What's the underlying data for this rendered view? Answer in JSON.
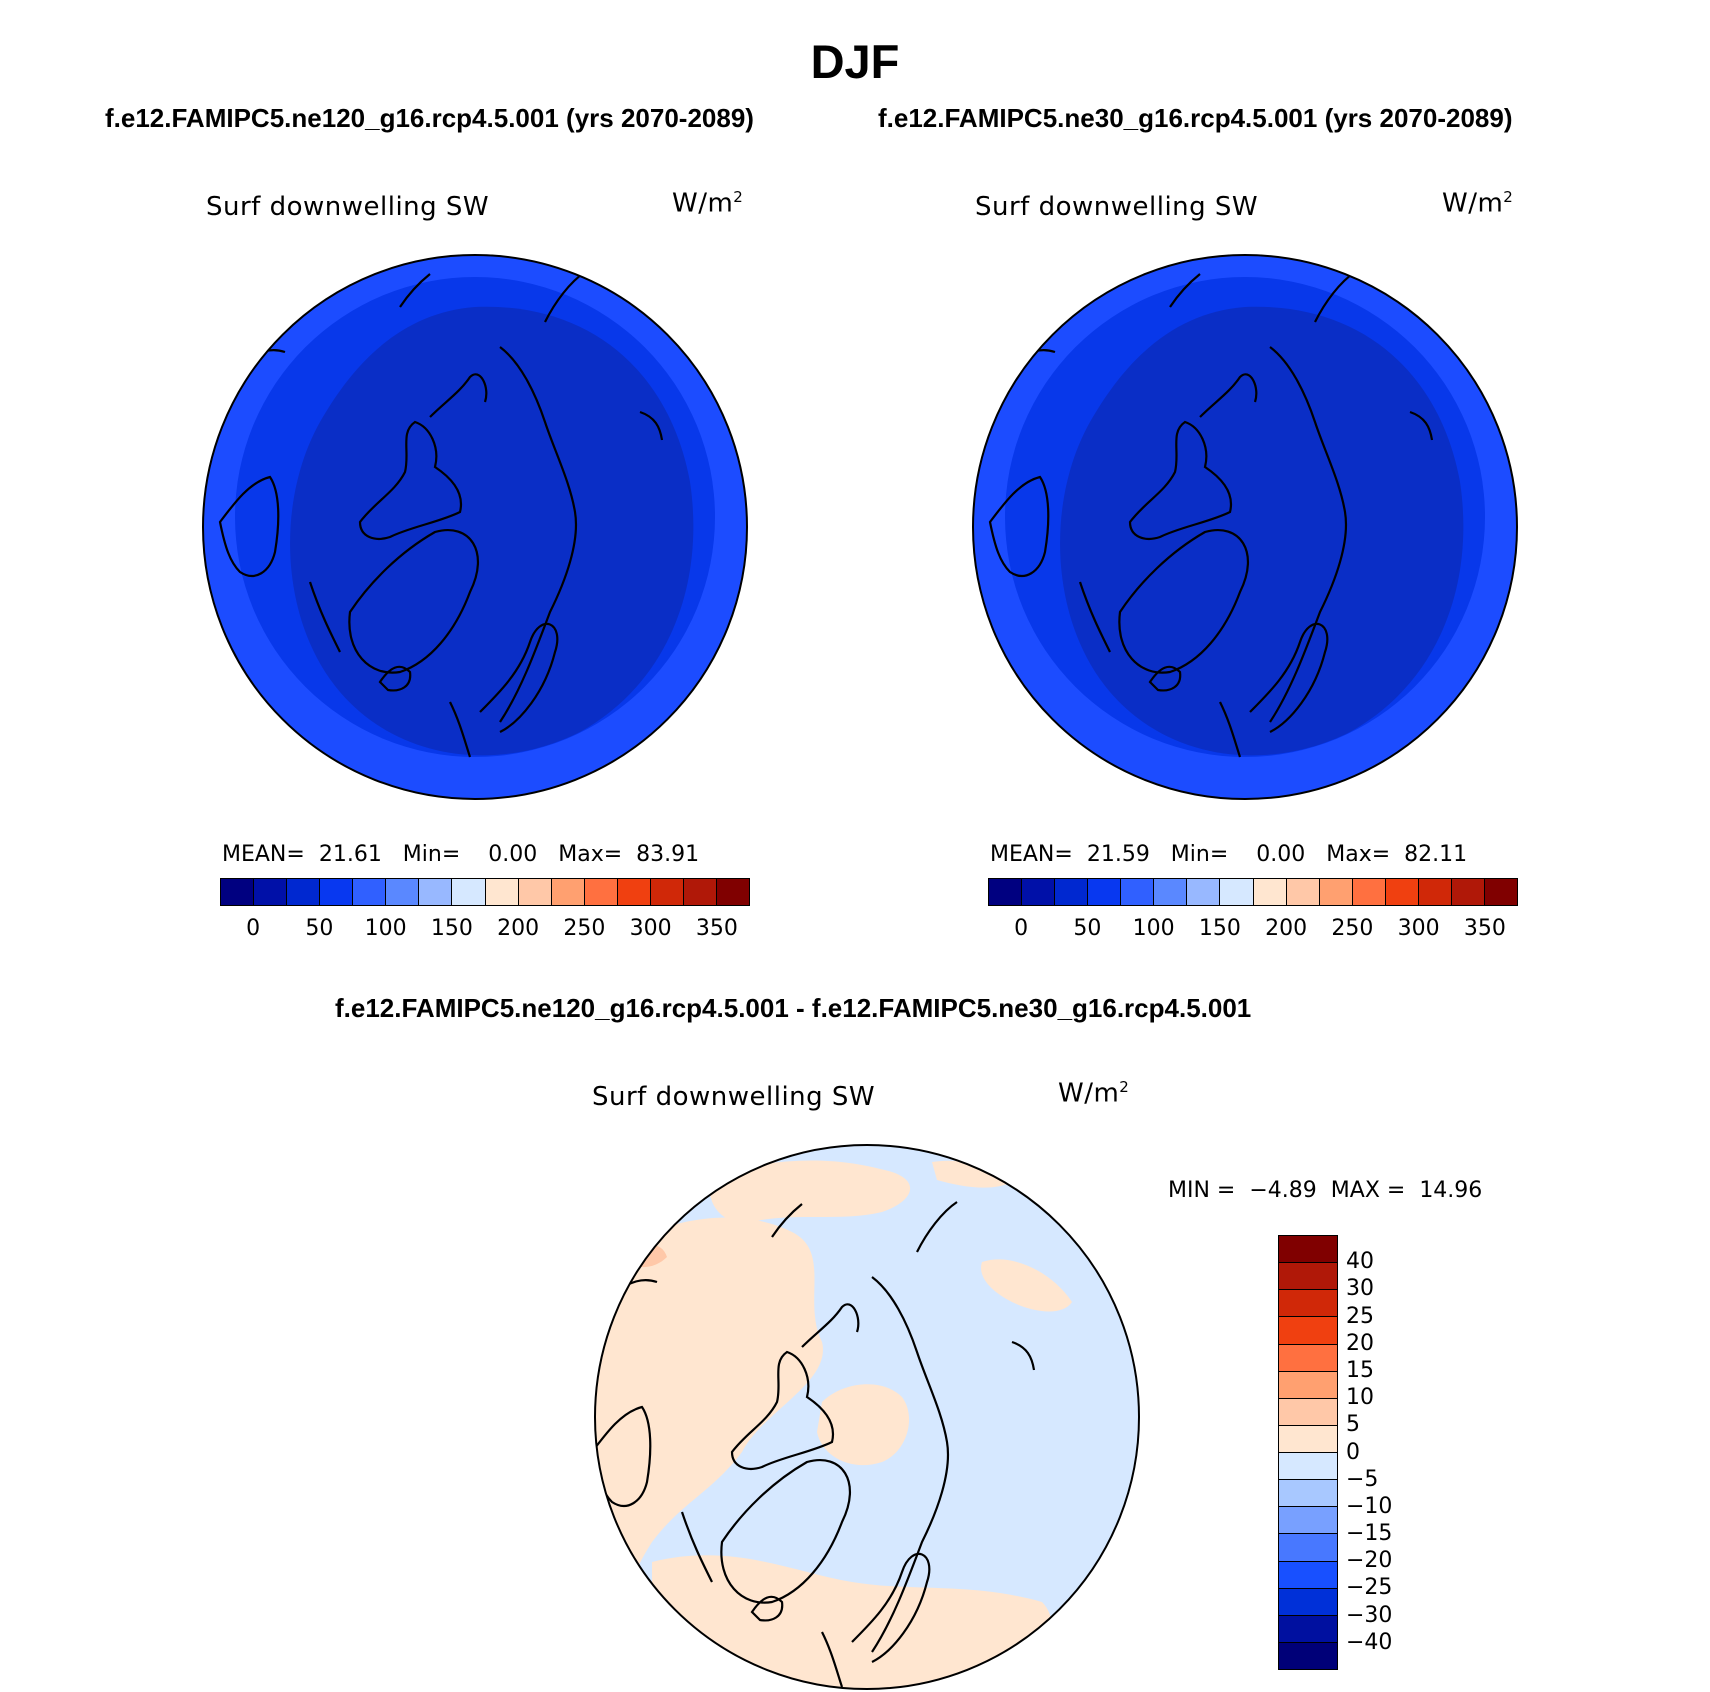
{
  "title": "DJF",
  "panels": [
    {
      "subtitle": "f.e12.FAMIPC5.ne120_g16.rcp4.5.001 (yrs 2070-2089)",
      "variable": "Surf downwelling SW",
      "units_base": "W/m",
      "units_exp": "2",
      "mean_label": "MEAN=",
      "mean": "21.61",
      "min_label": "Min=",
      "min": "0.00",
      "max_label": "Max=",
      "max": "83.91"
    },
    {
      "subtitle": "f.e12.FAMIPC5.ne30_g16.rcp4.5.001 (yrs 2070-2089)",
      "variable": "Surf downwelling SW",
      "units_base": "W/m",
      "units_exp": "2",
      "mean_label": "MEAN=",
      "mean": "21.59",
      "min_label": "Min=",
      "min": "0.00",
      "max_label": "Max=",
      "max": "82.11"
    }
  ],
  "diff": {
    "subtitle": "f.e12.FAMIPC5.ne120_g16.rcp4.5.001 - f.e12.FAMIPC5.ne30_g16.rcp4.5.001",
    "variable": "Surf downwelling SW",
    "units_base": "W/m",
    "units_exp": "2",
    "min_label": "MIN =",
    "min": "−4.89",
    "max_label": "MAX =",
    "max": "14.96"
  },
  "colorbar_top": {
    "colors": [
      "#000080",
      "#0010a8",
      "#0028d0",
      "#0838f0",
      "#3060ff",
      "#5a88ff",
      "#98b8ff",
      "#d6e8ff",
      "#ffe6d0",
      "#ffc8a8",
      "#ffa070",
      "#ff7040",
      "#f04010",
      "#d02808",
      "#b01808",
      "#800000"
    ],
    "ticks": [
      "0",
      "50",
      "100",
      "150",
      "200",
      "250",
      "300",
      "350"
    ]
  },
  "colorbar_diff": {
    "colors": [
      "#800000",
      "#b01808",
      "#d02808",
      "#f04010",
      "#ff7040",
      "#ffa070",
      "#ffc8a8",
      "#ffe6d0",
      "#d6e8ff",
      "#a8c8ff",
      "#78a0ff",
      "#4878ff",
      "#1850ff",
      "#0030d8",
      "#0010a0",
      "#000078"
    ],
    "ticks": [
      "40",
      "30",
      "25",
      "20",
      "15",
      "10",
      "5",
      "0",
      "−5",
      "−10",
      "−15",
      "−20",
      "−25",
      "−30",
      "−40"
    ]
  },
  "map_colors": {
    "top_outer": "#1c4cff",
    "top_mid": "#0838ea",
    "top_inner": "#0a2ec6",
    "diff_background": "#d6e8ff",
    "diff_positive": "#ffe6d0",
    "diff_strong_positive": "#ffc8a8"
  }
}
